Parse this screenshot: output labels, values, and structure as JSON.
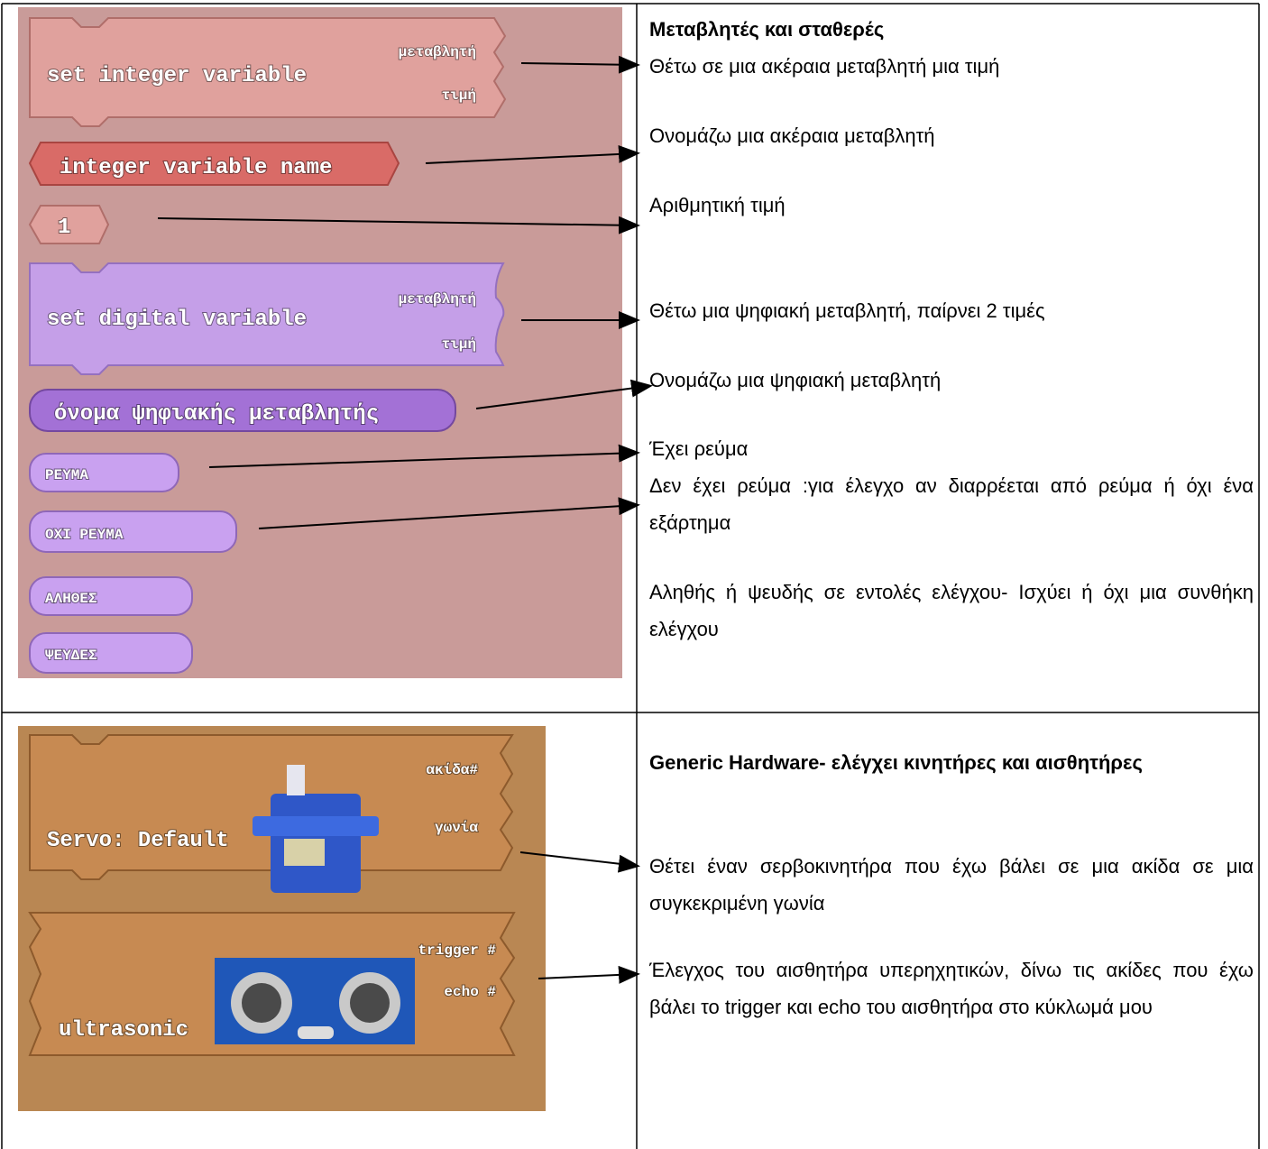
{
  "rows": [
    {
      "blocks": [
        {
          "label": "set integer variable",
          "inputs": [
            "μεταβλητή",
            "τιμή"
          ]
        },
        {
          "label": "integer variable name"
        },
        {
          "label": "1"
        },
        {
          "label": "set digital variable",
          "inputs": [
            "μεταβλητή",
            "τιμή"
          ]
        },
        {
          "label": "όνομα ψηφιακής μεταβλητής"
        },
        {
          "label": "ΡΕΥΜΑ"
        },
        {
          "label": "ΟΧΙ ΡΕΥΜΑ"
        },
        {
          "label": "ΑΛΗΘΕΣ"
        },
        {
          "label": "ΨΕΥΔΕΣ"
        }
      ],
      "heading": "Μεταβλητές και σταθερές",
      "paragraphs": [
        "Θέτω σε μια ακέραια μεταβλητή μια τιμή",
        "Ονομάζω μια ακέραια μεταβλητή",
        "Αριθμητική τιμή",
        "Θέτω μια ψηφιακή μεταβλητή, παίρνει 2 τιμές",
        "Ονομάζω μια ψηφιακή μεταβλητή",
        "Έχει ρεύμα",
        "Δεν έχει ρεύμα :για έλεγχο αν διαρρέεται από ρεύμα ή όχι ένα εξάρτημα",
        "Αληθής ή ψευδής σε εντολές ελέγχου- Ισχύει ή όχι μια συνθήκη ελέγχου"
      ]
    },
    {
      "blocks": [
        {
          "label": "Servo: Default",
          "inputs": [
            "ακίδα#",
            "γωνία"
          ]
        },
        {
          "label": "ultrasonic",
          "inputs": [
            "trigger #",
            "echo #"
          ]
        }
      ],
      "heading": "Generic Hardware- ελέγχει κινητήρες και αισθητήρες",
      "paragraphs": [
        "Θέτει έναν σερβοκινητήρα που έχω βάλει σε μια ακίδα σε μια συγκεκριμένη γωνία",
        "Έλεγχος του αισθητήρα υπερηχητικών, δίνω τις ακίδες που έχω βάλει το trigger και echo του αισθητήρα στο κύκλωμά μου"
      ]
    }
  ]
}
